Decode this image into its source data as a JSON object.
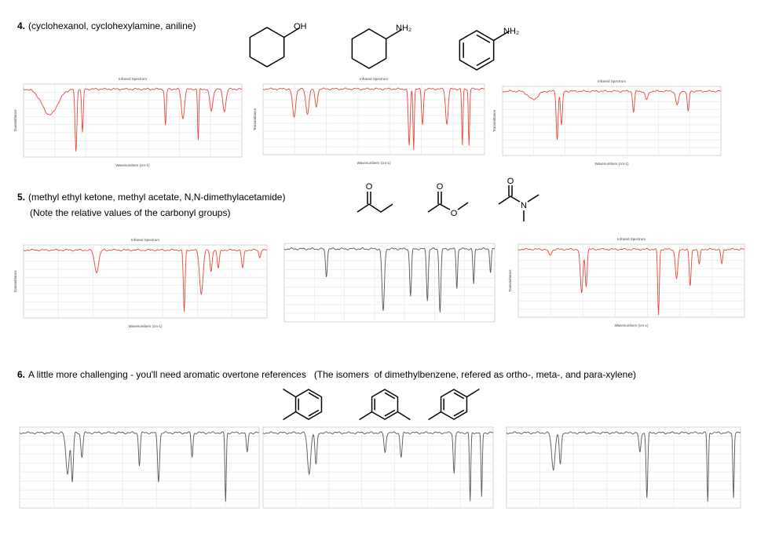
{
  "questions": [
    {
      "number": "4.",
      "text": "(cyclohexanol, cyclohexylamine, aniline)",
      "labels": [
        "OH",
        "NH₂",
        "NH₂"
      ]
    },
    {
      "number": "5.",
      "text": "(methyl ethyl ketone, methyl acetate, N,N-dimethylacetamide)",
      "note": "(Note the relative values of the carbonyl groups)",
      "labels": [
        "O",
        "O",
        "O",
        "O",
        "N"
      ]
    },
    {
      "number": "6.",
      "text": "A little more challenging - you'll need aromatic overtone references   (The isomers  of dimethylbenzene, refered as ortho-, meta-, and para-xylene)"
    }
  ],
  "spectra": {
    "title": "Infrared Spectrum",
    "x_label": "Wavenumbers (cm-1)",
    "y_label": "Transmittance"
  }
}
